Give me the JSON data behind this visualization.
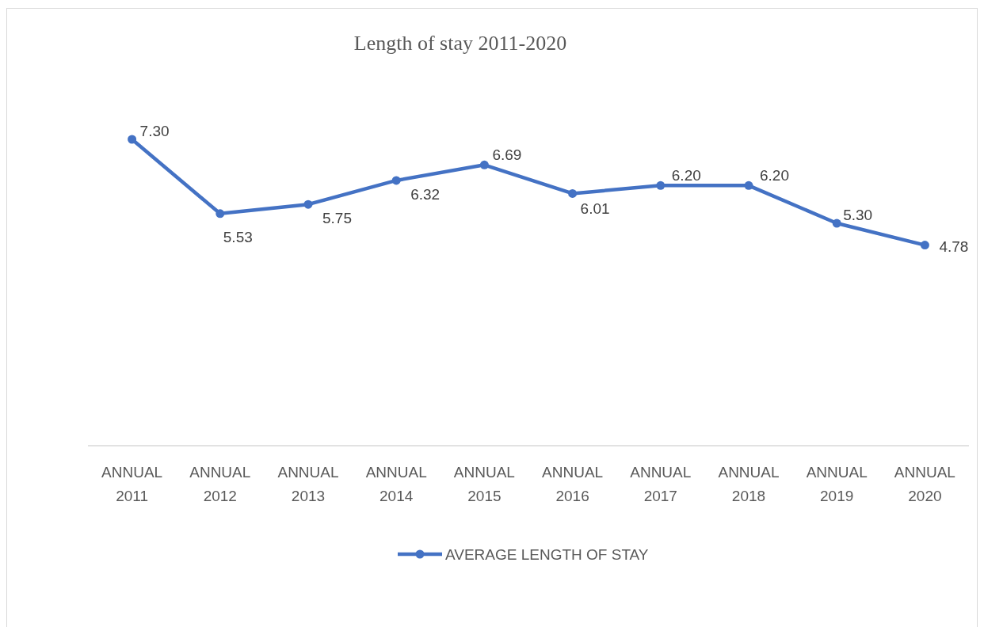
{
  "chart_data": {
    "type": "line",
    "title": "Length of stay 2011-2020",
    "categories": [
      "ANNUAL 2011",
      "ANNUAL 2012",
      "ANNUAL 2013",
      "ANNUAL 2014",
      "ANNUAL 2015",
      "ANNUAL 2016",
      "ANNUAL 2017",
      "ANNUAL 2018",
      "ANNUAL 2019",
      "ANNUAL 2020"
    ],
    "series": [
      {
        "name": "AVERAGE LENGTH OF STAY",
        "color": "#4472c4",
        "values": [
          7.3,
          5.53,
          5.75,
          6.32,
          6.69,
          6.01,
          6.2,
          6.2,
          5.3,
          4.78
        ],
        "value_labels": [
          "7.30",
          "5.53",
          "5.75",
          "6.32",
          "6.69",
          "6.01",
          "6.20",
          "6.20",
          "5.30",
          "4.78"
        ]
      }
    ],
    "tick_labels": "x",
    "marker": "circle",
    "line_style": "solid",
    "legend": "bottom",
    "grid": false
  }
}
